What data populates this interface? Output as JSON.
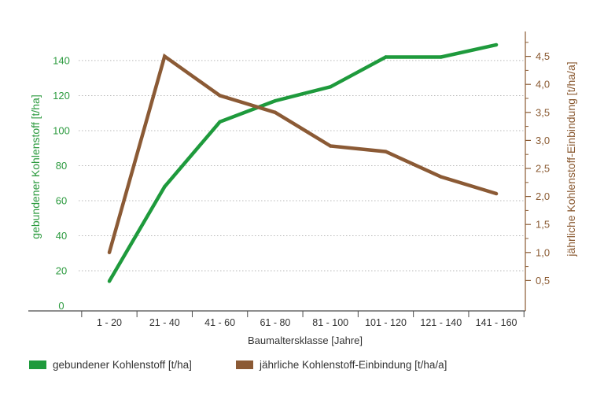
{
  "chart_data": {
    "type": "line",
    "categories": [
      "1 - 20",
      "21 - 40",
      "41 - 60",
      "61 - 80",
      "81 - 100",
      "101 - 120",
      "121 - 140",
      "141 - 160"
    ],
    "xlabel": "Baumaltersklasse [Jahre]",
    "y_left": {
      "label": "gebundener Kohlenstoff [t/ha]",
      "ticks": [
        "0",
        "20",
        "40",
        "60",
        "80",
        "100",
        "120",
        "140"
      ],
      "ylim": [
        0,
        150
      ]
    },
    "y_right": {
      "label": "jährliche Kohlenstoff-Einbindung [t/ha/a]",
      "ticks": [
        "0,5",
        "1,0",
        "1,5",
        "2,0",
        "2,5",
        "3,0",
        "3,5",
        "4,0",
        "4,5"
      ],
      "ylim": [
        0.0,
        4.8
      ]
    },
    "series": [
      {
        "name": "gebundener Kohlenstoff [t/ha]",
        "axis": "left",
        "color": "#1e9a3c",
        "values": [
          14,
          68,
          105,
          117,
          125,
          142,
          142,
          149
        ]
      },
      {
        "name": "jährliche Kohlenstoff-Einbindung [t/ha/a]",
        "axis": "right",
        "color": "#8b5a35",
        "values": [
          1.0,
          4.5,
          3.8,
          3.5,
          2.9,
          2.8,
          2.35,
          2.05
        ]
      }
    ],
    "legend": [
      "gebundener Kohlenstoff [t/ha]",
      "jährliche Kohlenstoff-Einbindung [t/ha/a]"
    ],
    "grid": true,
    "legend_position": "bottom-left"
  }
}
